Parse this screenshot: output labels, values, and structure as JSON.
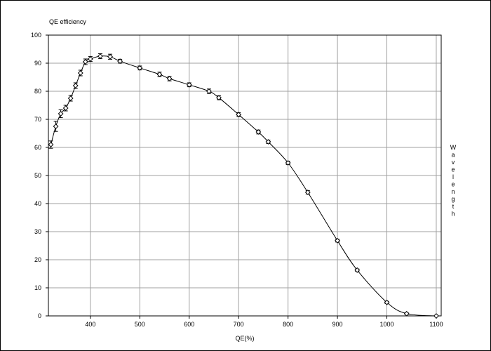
{
  "chart_data": {
    "type": "line",
    "title": "QE efficiency",
    "xlabel": "QE(%)",
    "ylabel": "Wavelength",
    "xlim": [
      315,
      1110
    ],
    "ylim": [
      0,
      100
    ],
    "x_ticks": [
      400,
      500,
      600,
      700,
      800,
      900,
      1000,
      1100
    ],
    "y_ticks": [
      0,
      10,
      20,
      30,
      40,
      50,
      60,
      70,
      80,
      90,
      100
    ],
    "grid": true,
    "series": [
      {
        "color": "#000000",
        "marker": "diamond",
        "x": [
          320,
          330,
          340,
          350,
          360,
          370,
          380,
          390,
          400,
          420,
          440,
          460,
          500,
          540,
          560,
          600,
          640,
          660,
          700,
          740,
          760,
          800,
          840,
          900,
          940,
          1000,
          1040,
          1100
        ],
        "y": [
          61,
          67.5,
          72,
          74,
          77.5,
          82,
          86.5,
          90.5,
          91.5,
          92.5,
          92.3,
          90.7,
          88.3,
          86,
          84.5,
          82.3,
          80,
          77.7,
          71.7,
          65.5,
          62,
          54.5,
          44,
          26.8,
          16.3,
          4.8,
          0.8,
          0
        ],
        "err": [
          1.3,
          1.8,
          1.4,
          1,
          1,
          1,
          1,
          1,
          0.9,
          0.9,
          0.9,
          0.7,
          0.7,
          0.8,
          0.8,
          0.7,
          0.8,
          0.7,
          0.7,
          0.7,
          0.6,
          0.6,
          0.6,
          0.5,
          0.4,
          0.4,
          0.3,
          0.2
        ]
      }
    ]
  }
}
